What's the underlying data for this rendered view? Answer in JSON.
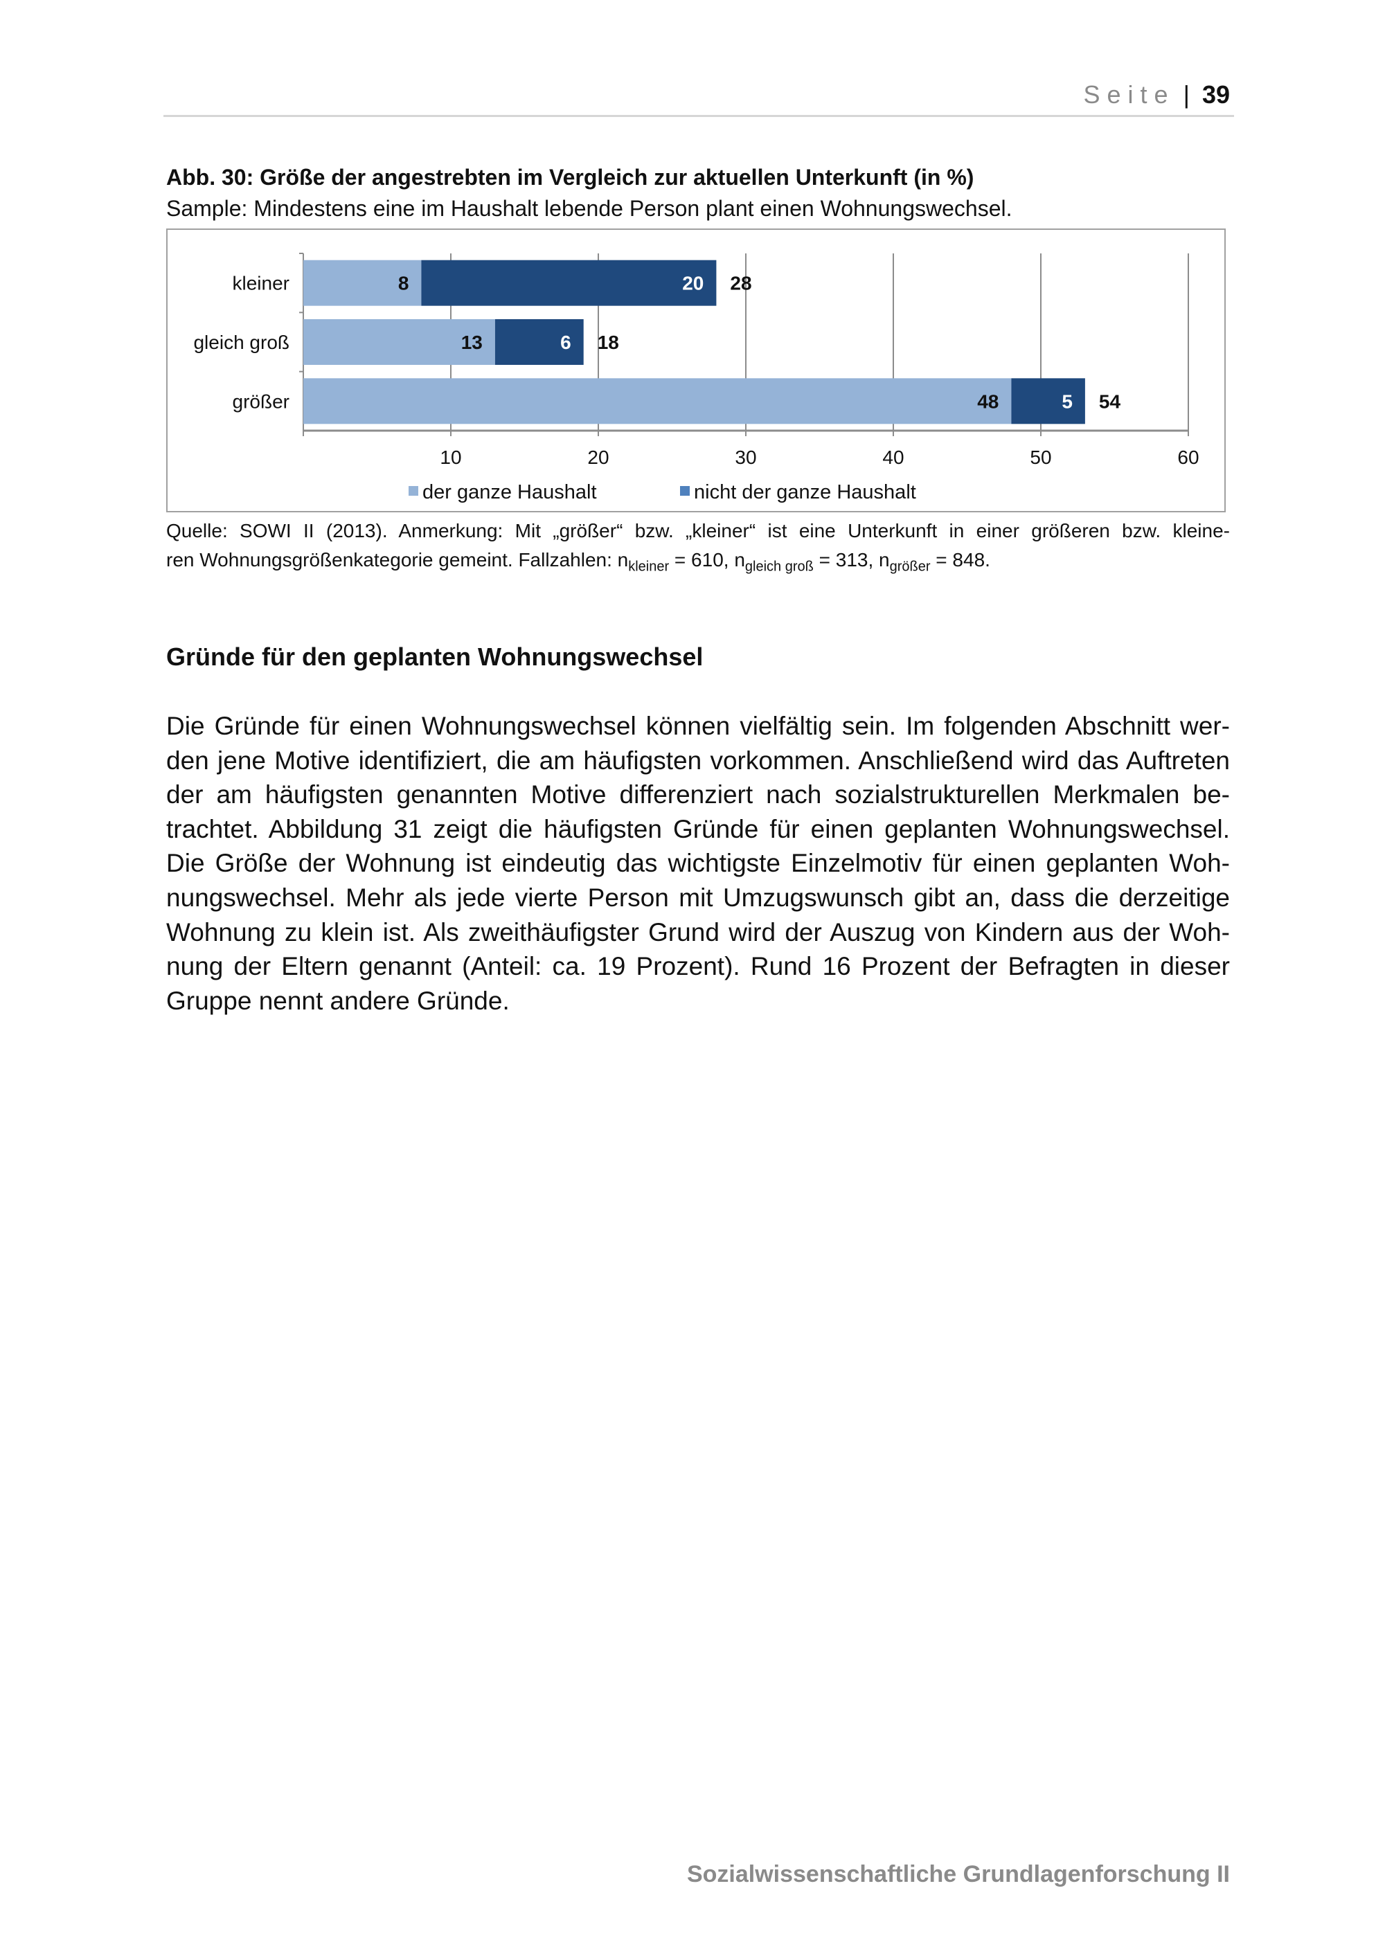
{
  "header": {
    "label": "Seite",
    "separator": "|",
    "page_number": "39"
  },
  "figure": {
    "title": "Abb. 30: Größe der angestrebten im Vergleich zur aktuellen Unterkunft (in %)",
    "sample": "Sample: Mindestens eine im Haushalt lebende Person plant einen Wohnungswechsel.",
    "note_line1": "Quelle: SOWI II (2013). Anmerkung: Mit „größer“ bzw. „kleiner“ ist eine Unterkunft in einer größeren bzw. kleine-",
    "note_line2_prefix": "ren Wohnungsgrößenkategorie gemeint. Fallzahlen: n",
    "n1_sub": "kleiner",
    "n1_val": " = 610, n",
    "n2_sub": "gleich groß",
    "n2_val": " = 313, n",
    "n3_sub": "größer",
    "n3_val": " = 848."
  },
  "chart_data": {
    "type": "bar",
    "orientation": "horizontal",
    "stacked": true,
    "categories": [
      "kleiner",
      "gleich groß",
      "größer"
    ],
    "series": [
      {
        "name": "der ganze Haushalt",
        "values": [
          8,
          13,
          48
        ],
        "color": "#95b3d7"
      },
      {
        "name": "nicht der ganze Haushalt",
        "values": [
          20,
          6,
          5
        ],
        "color": "#1f497d"
      }
    ],
    "totals": [
      28,
      18,
      54
    ],
    "xlim": [
      0,
      60
    ],
    "xticks": [
      10,
      20,
      30,
      40,
      50,
      60
    ],
    "grid": true,
    "legend": "bottom",
    "legend_colors": [
      "#95b3d7",
      "#4f81bd"
    ]
  },
  "section": {
    "heading": "Gründe für den geplanten Wohnungswechsel",
    "lines": [
      "Die Gründe für einen Wohnungswechsel können vielfältig sein. Im folgenden Abschnitt wer-",
      "den jene Motive identifiziert, die am häufigsten vorkommen. Anschließend wird das Auftreten",
      "der am häufigsten genannten Motive differenziert nach sozialstrukturellen Merkmalen be-",
      "trachtet. Abbildung 31 zeigt die häufigsten Gründe für einen geplanten Wohnungswechsel.",
      "Die Größe der Wohnung ist eindeutig das wichtigste Einzelmotiv für einen geplanten Woh-",
      "nungswechsel. Mehr als jede vierte Person mit Umzugswunsch gibt an, dass die derzeitige",
      "Wohnung zu klein ist. Als zweithäufigster Grund wird der Auszug von Kindern aus der Woh-",
      "nung der Eltern genannt (Anteil: ca. 19 Prozent). Rund 16 Prozent der Befragten in dieser",
      "Gruppe nennt andere Gründe."
    ]
  },
  "footer": {
    "text": "Sozialwissenschaftliche Grundlagenforschung II"
  }
}
